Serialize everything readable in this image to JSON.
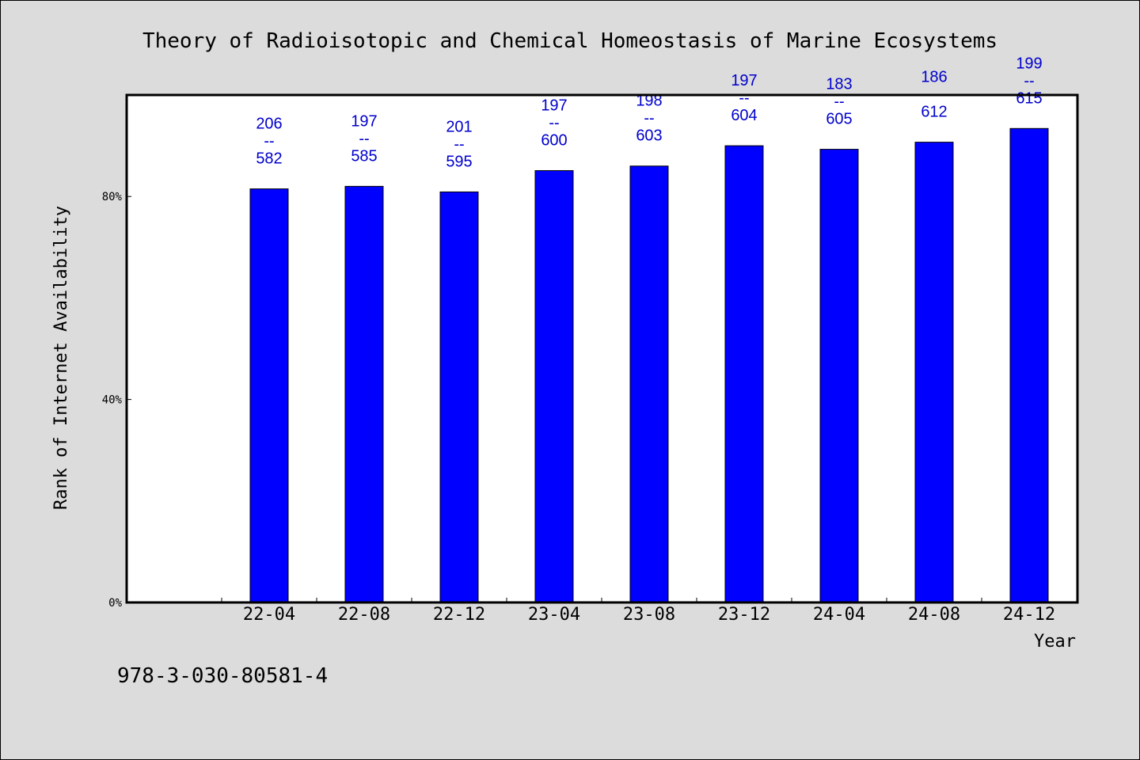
{
  "colors": {
    "background": "#dcdcdc",
    "plot_background": "#ffffff",
    "bar": "#0000ff",
    "bar_label": "#0000cc"
  },
  "footnote": "978-3-030-80581-4",
  "chart_data": {
    "type": "bar",
    "title": "Theory of Radioisotopic and Chemical Homeostasis of Marine Ecosystems",
    "xlabel": "Year",
    "ylabel": "Rank of Internet Availability",
    "categories": [
      "22-04",
      "22-08",
      "22-12",
      "23-04",
      "23-08",
      "23-12",
      "24-04",
      "24-08",
      "24-12"
    ],
    "values": [
      81.5,
      82.0,
      80.9,
      85.1,
      86.0,
      90.0,
      89.3,
      90.7,
      93.4
    ],
    "value_unit": "%",
    "label_top": [
      "206",
      "197",
      "201",
      "197",
      "198",
      "197",
      "183",
      "186",
      "199"
    ],
    "label_sep": "--",
    "label_bottom": [
      "582",
      "585",
      "595",
      "600",
      "603",
      "604",
      "605",
      "612",
      "615"
    ],
    "ylim": [
      0,
      100
    ],
    "yticks": [
      0,
      40,
      80
    ],
    "ytick_labels": [
      "0%",
      "40%",
      "80%"
    ],
    "grid": false,
    "legend": "none"
  }
}
